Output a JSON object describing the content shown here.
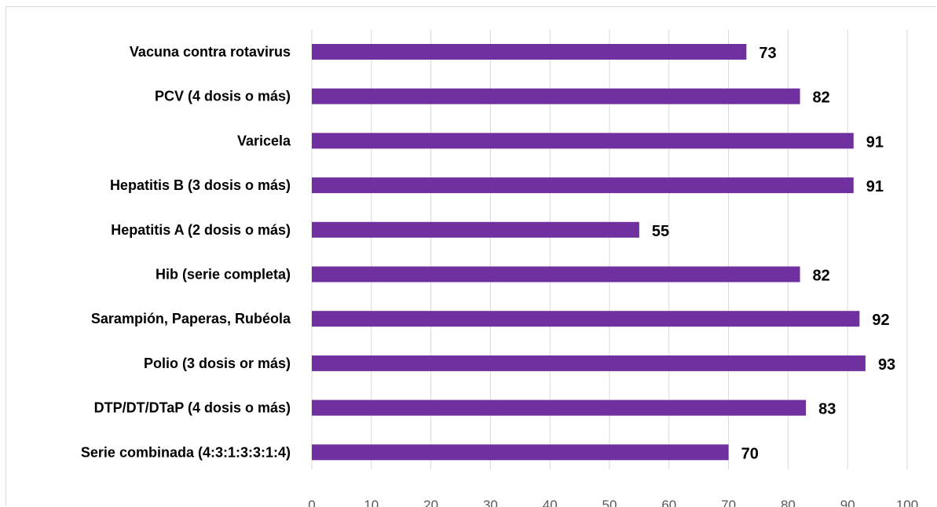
{
  "chart_data": {
    "type": "bar",
    "orientation": "horizontal",
    "categories": [
      "Vacuna contra rotavirus",
      "PCV (4 dosis o más)",
      "Varicela",
      "Hepatitis B (3 dosis o más)",
      "Hepatitis A (2 dosis o más)",
      "Hib (serie completa)",
      "Sarampión, Paperas, Rubéola",
      "Polio (3 dosis or más)",
      "DTP/DT/DTaP (4 dosis o más)",
      "Serie combinada (4:3:1:3:3:1:4)"
    ],
    "values": [
      73,
      82,
      91,
      91,
      55,
      82,
      92,
      93,
      83,
      70
    ],
    "xlim": [
      0,
      100
    ],
    "xticks": [
      0,
      10,
      20,
      30,
      40,
      50,
      60,
      70,
      80,
      90,
      100
    ],
    "grid": true,
    "bar_color": "#7030a0",
    "data_labels": true
  }
}
